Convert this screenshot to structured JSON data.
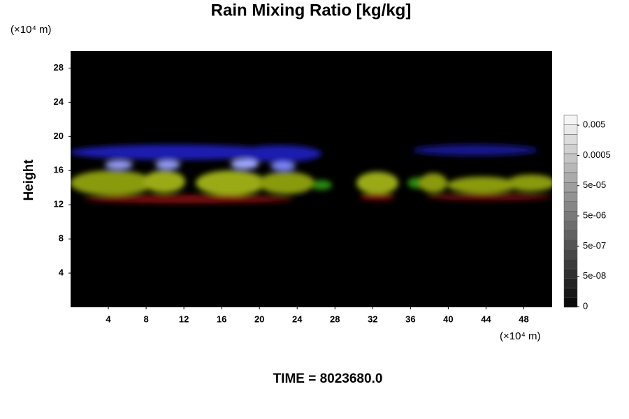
{
  "chart_data": {
    "type": "heatmap",
    "title": "Rain Mixing Ratio [kg/kg]",
    "y_unit": "(×10⁴ m)",
    "x_unit": "(×10⁴ m)",
    "ylabel": "Height",
    "footer": "TIME = 8023680.0",
    "xlim": [
      0,
      51
    ],
    "xticks": [
      4,
      8,
      12,
      16,
      20,
      24,
      28,
      32,
      36,
      40,
      44,
      48
    ],
    "ylim": [
      0,
      30
    ],
    "yticks": [
      4,
      8,
      12,
      16,
      20,
      24,
      28
    ],
    "colorbar": {
      "ticks": [
        0,
        {
          "value": 5e-08,
          "label": "5e-08"
        },
        {
          "value": 5e-07,
          "label": "5e-07"
        },
        {
          "value": 5e-06,
          "label": "5e-06"
        },
        {
          "value": 5e-05,
          "label": "5e-05"
        },
        0.0005,
        0.005
      ]
    }
  }
}
